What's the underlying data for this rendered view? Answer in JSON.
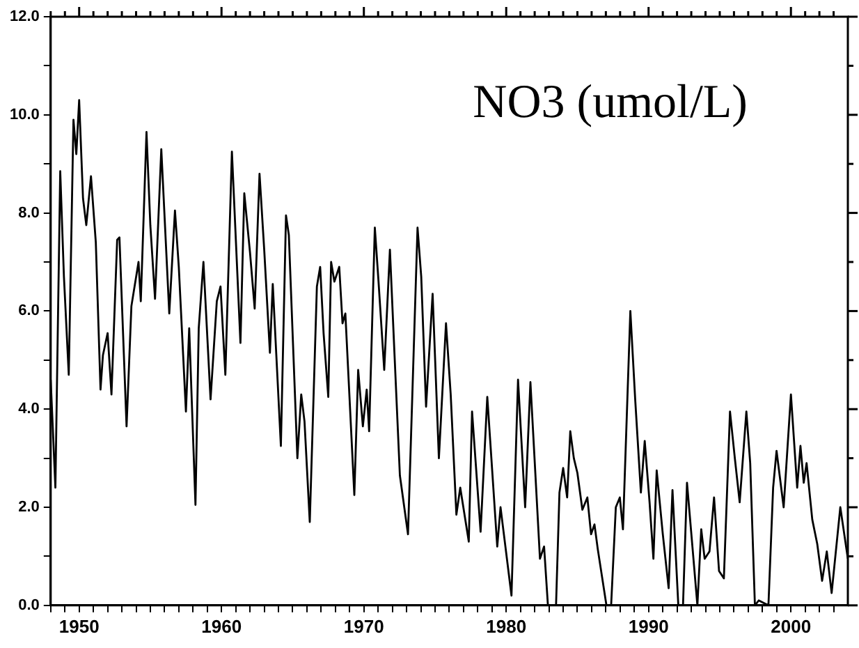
{
  "chart_data": {
    "type": "line",
    "annotations": [
      "NO3 (umol/L)"
    ],
    "xlim": [
      1948,
      2004
    ],
    "ylim": [
      0,
      12
    ],
    "xticks": [
      {
        "value": 1948,
        "label": null
      },
      {
        "value": 1949,
        "label": null
      },
      1950,
      {
        "value": 1951,
        "label": null
      },
      {
        "value": 1952,
        "label": null
      },
      {
        "value": 1953,
        "label": null
      },
      {
        "value": 1954,
        "label": null
      },
      {
        "value": 1955,
        "label": null
      },
      {
        "value": 1956,
        "label": null
      },
      {
        "value": 1957,
        "label": null
      },
      {
        "value": 1958,
        "label": null
      },
      {
        "value": 1959,
        "label": null
      },
      1960,
      {
        "value": 1961,
        "label": null
      },
      {
        "value": 1962,
        "label": null
      },
      {
        "value": 1963,
        "label": null
      },
      {
        "value": 1964,
        "label": null
      },
      {
        "value": 1965,
        "label": null
      },
      {
        "value": 1966,
        "label": null
      },
      {
        "value": 1967,
        "label": null
      },
      {
        "value": 1968,
        "label": null
      },
      {
        "value": 1969,
        "label": null
      },
      1970,
      {
        "value": 1971,
        "label": null
      },
      {
        "value": 1972,
        "label": null
      },
      {
        "value": 1973,
        "label": null
      },
      {
        "value": 1974,
        "label": null
      },
      {
        "value": 1975,
        "label": null
      },
      {
        "value": 1976,
        "label": null
      },
      {
        "value": 1977,
        "label": null
      },
      {
        "value": 1978,
        "label": null
      },
      {
        "value": 1979,
        "label": null
      },
      1980,
      {
        "value": 1981,
        "label": null
      },
      {
        "value": 1982,
        "label": null
      },
      {
        "value": 1983,
        "label": null
      },
      {
        "value": 1984,
        "label": null
      },
      {
        "value": 1985,
        "label": null
      },
      {
        "value": 1986,
        "label": null
      },
      {
        "value": 1987,
        "label": null
      },
      {
        "value": 1988,
        "label": null
      },
      {
        "value": 1989,
        "label": null
      },
      1990,
      {
        "value": 1991,
        "label": null
      },
      {
        "value": 1992,
        "label": null
      },
      {
        "value": 1993,
        "label": null
      },
      {
        "value": 1994,
        "label": null
      },
      {
        "value": 1995,
        "label": null
      },
      {
        "value": 1996,
        "label": null
      },
      {
        "value": 1997,
        "label": null
      },
      {
        "value": 1998,
        "label": null
      },
      {
        "value": 1999,
        "label": null
      },
      2000,
      {
        "value": 2001,
        "label": null
      },
      {
        "value": 2002,
        "label": null
      },
      {
        "value": 2003,
        "label": null
      }
    ],
    "yticks": [
      {
        "value": 0,
        "label": "0.0"
      },
      {
        "value": 1,
        "label": null
      },
      {
        "value": 2,
        "label": "2.0"
      },
      {
        "value": 3,
        "label": null
      },
      {
        "value": 4,
        "label": "4.0"
      },
      {
        "value": 5,
        "label": null
      },
      {
        "value": 6,
        "label": "6.0"
      },
      {
        "value": 7,
        "label": null
      },
      {
        "value": 8,
        "label": "8.0"
      },
      {
        "value": 9,
        "label": null
      },
      {
        "value": 10,
        "label": "10.0"
      },
      {
        "value": 11,
        "label": null
      },
      {
        "value": 12,
        "label": "12.0"
      }
    ],
    "legend": false,
    "grid": false,
    "marker": "none",
    "line_style": "solid",
    "series": [
      {
        "color": "#000000",
        "x": [
          1948.0,
          1948.33,
          1948.67,
          1948.93,
          1949.27,
          1949.6,
          1949.8,
          1950.0,
          1950.27,
          1950.5,
          1950.83,
          1951.17,
          1951.5,
          1951.67,
          1952.0,
          1952.27,
          1952.67,
          1952.83,
          1953.33,
          1953.67,
          1954.17,
          1954.33,
          1954.73,
          1955.0,
          1955.33,
          1955.77,
          1956.33,
          1956.73,
          1957.0,
          1957.5,
          1957.73,
          1958.17,
          1958.4,
          1958.73,
          1959.23,
          1959.67,
          1959.93,
          1960.27,
          1960.73,
          1961.33,
          1961.6,
          1962.0,
          1962.33,
          1962.67,
          1963.0,
          1963.4,
          1963.6,
          1964.17,
          1964.53,
          1964.73,
          1965.33,
          1965.6,
          1965.83,
          1966.2,
          1966.7,
          1966.93,
          1967.17,
          1967.5,
          1967.7,
          1967.93,
          1968.27,
          1968.5,
          1968.7,
          1968.93,
          1969.33,
          1969.6,
          1969.93,
          1970.2,
          1970.37,
          1970.77,
          1971.03,
          1971.43,
          1971.83,
          1972.17,
          1972.53,
          1973.1,
          1973.77,
          1974.03,
          1974.37,
          1974.83,
          1975.27,
          1975.77,
          1976.1,
          1976.5,
          1976.77,
          1977.37,
          1977.6,
          1978.2,
          1978.67,
          1979.37,
          1979.6,
          1980.37,
          1980.83,
          1981.33,
          1981.7,
          1982.37,
          1982.66,
          1982.93,
          1983.5,
          1983.74,
          1984.0,
          1984.28,
          1984.5,
          1984.75,
          1985.0,
          1985.35,
          1985.7,
          1985.96,
          1986.2,
          1986.43,
          1987.04,
          1987.37,
          1987.7,
          1987.98,
          1988.2,
          1988.72,
          1989.06,
          1989.46,
          1989.73,
          1990.07,
          1990.34,
          1990.57,
          1991.0,
          1991.41,
          1991.68,
          1992.09,
          1992.42,
          1992.7,
          1993.43,
          1993.7,
          1993.94,
          1994.28,
          1994.6,
          1994.95,
          1995.29,
          1995.72,
          1996.06,
          1996.4,
          1996.87,
          1997.14,
          1997.47,
          1997.74,
          1998.42,
          1998.75,
          1998.99,
          1999.49,
          2000.0,
          2000.44,
          2000.67,
          2000.9,
          2001.1,
          2001.5,
          2001.85,
          2002.19,
          2002.52,
          2002.86,
          2003.47,
          2004.0
        ],
        "values": [
          4.6,
          2.4,
          8.85,
          6.7,
          4.7,
          9.9,
          9.2,
          10.3,
          8.3,
          7.75,
          8.75,
          7.4,
          4.4,
          5.1,
          5.55,
          4.3,
          7.45,
          7.5,
          3.65,
          6.1,
          7.0,
          6.2,
          9.65,
          7.75,
          6.25,
          9.3,
          5.95,
          8.05,
          6.9,
          3.95,
          5.65,
          2.05,
          5.65,
          7.0,
          4.2,
          6.2,
          6.5,
          4.7,
          9.25,
          5.35,
          8.4,
          7.2,
          6.05,
          8.8,
          7.25,
          5.15,
          6.55,
          3.25,
          7.95,
          7.55,
          3.0,
          4.3,
          3.75,
          1.7,
          6.5,
          6.9,
          5.55,
          4.25,
          7.0,
          6.6,
          6.9,
          5.75,
          5.95,
          4.6,
          2.25,
          4.8,
          3.65,
          4.4,
          3.55,
          7.7,
          6.6,
          4.8,
          7.25,
          5.0,
          2.65,
          1.45,
          7.7,
          6.7,
          4.05,
          6.35,
          3.0,
          5.75,
          4.3,
          1.85,
          2.4,
          1.3,
          3.95,
          1.5,
          4.25,
          1.2,
          2.0,
          0.2,
          4.6,
          2.0,
          4.55,
          0.95,
          1.2,
          0,
          0,
          2.3,
          2.8,
          2.2,
          3.55,
          3.0,
          2.7,
          1.95,
          2.2,
          1.45,
          1.65,
          1.15,
          0,
          0,
          2.0,
          2.2,
          1.55,
          6.0,
          4.2,
          2.3,
          3.35,
          2.1,
          0.95,
          2.75,
          1.45,
          0.35,
          2.35,
          0,
          0,
          2.5,
          0,
          1.55,
          0.95,
          1.1,
          2.2,
          0.7,
          0.55,
          3.95,
          3.0,
          2.1,
          3.95,
          2.9,
          0,
          0.1,
          0,
          2.4,
          3.15,
          2.0,
          4.3,
          2.4,
          3.25,
          2.5,
          2.9,
          1.75,
          1.25,
          0.5,
          1.1,
          0.25,
          2.0,
          0.95
        ]
      }
    ]
  }
}
